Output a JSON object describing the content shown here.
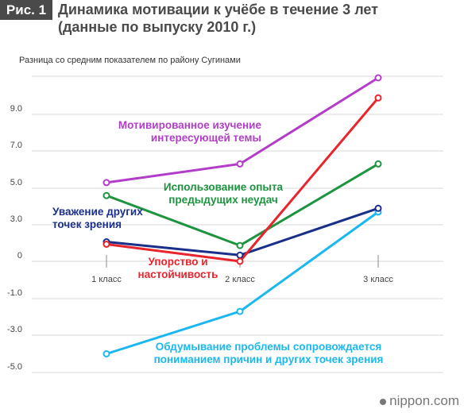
{
  "figure": {
    "badge": "Рис. 1",
    "title_line1": "Динамика мотивации к учёбе в течение 3 лет",
    "title_line2": "(данные по выпуску 2010 г.)"
  },
  "watermark": "nippon.com",
  "chart_data": {
    "type": "line",
    "title": "Динамика мотивации к учёбе в течение 3 лет (данные по выпуску 2010 г.)",
    "ylabel": "Разница со средним показателем по району Сугинами",
    "categories": [
      "1 класс",
      "2 класс",
      "3 класс"
    ],
    "ylim": [
      -5.5,
      11.5
    ],
    "yticks": [
      9.0,
      7.0,
      5.0,
      3.0,
      0,
      -1.0,
      -3.0,
      -5.0
    ],
    "grid": true,
    "series": [
      {
        "name": "Мотивированное изучение интересующей темы",
        "label_lines": [
          "Мотивированное изучение",
          "интересующей темы"
        ],
        "color": "#b23ec8",
        "values": [
          5.3,
          6.3,
          11.0
        ]
      },
      {
        "name": "Использование опыта предыдущих неудач",
        "label_lines": [
          "Использование опыта",
          "предыдущих неудач"
        ],
        "color": "#1e9440",
        "values": [
          4.6,
          1.3,
          6.3
        ]
      },
      {
        "name": "Уважение других точек зрения",
        "label_lines": [
          "Уважение других",
          "точек зрения"
        ],
        "color": "#1a2f8a",
        "values": [
          1.6,
          0.5,
          3.9
        ]
      },
      {
        "name": "Упорство и настойчивость",
        "label_lines": [
          "Упорство и",
          "настойчивость"
        ],
        "color": "#e8242c",
        "values": [
          1.4,
          0.0,
          9.9
        ]
      },
      {
        "name": "Обдумывание проблемы сопровождается пониманием причин и других точек зрения",
        "label_lines": [
          "Обдумывание проблемы сопровождается",
          "пониманием причин и других точек зрения"
        ],
        "color": "#1ab8ee",
        "values": [
          -4.0,
          -1.7,
          3.7
        ]
      }
    ]
  }
}
